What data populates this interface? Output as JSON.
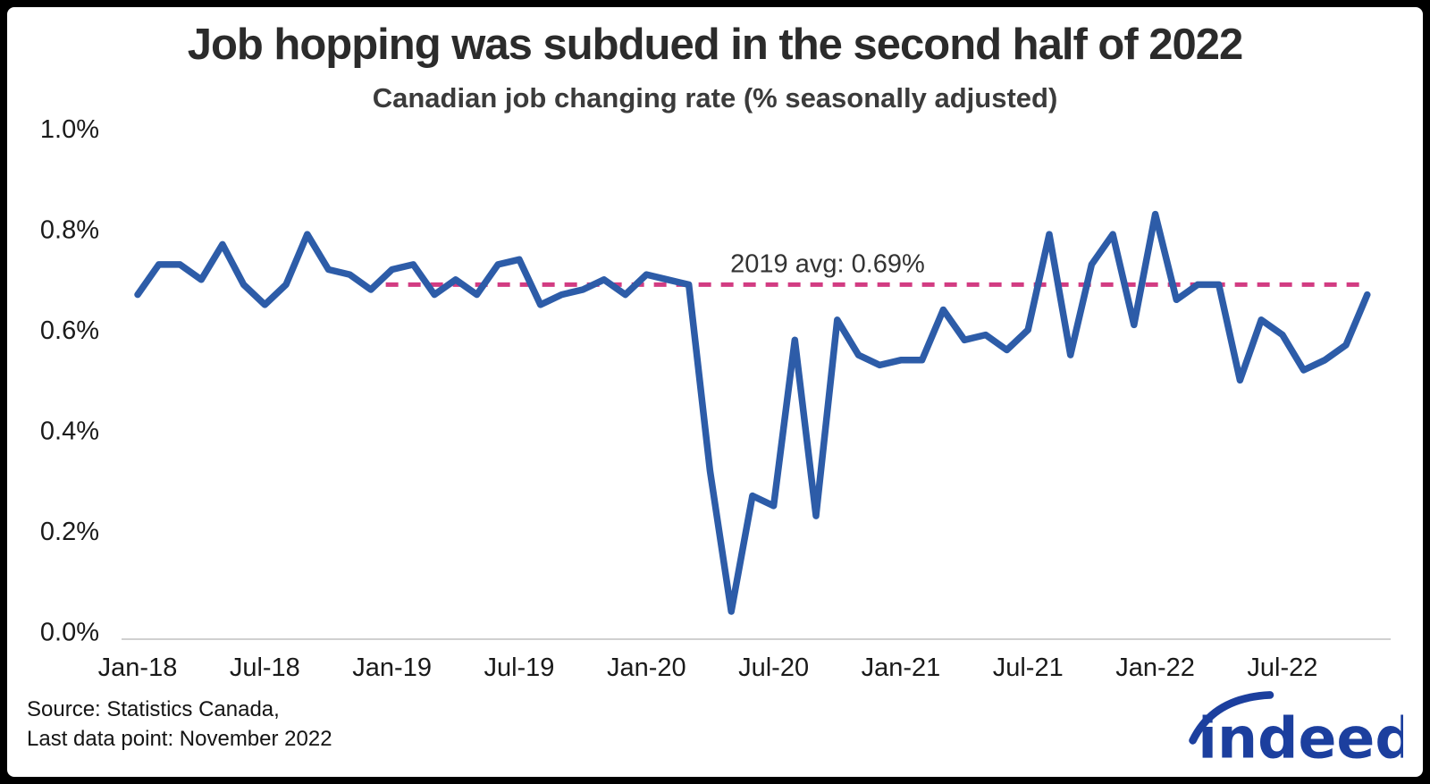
{
  "title": "Job hopping was subdued in the second half of 2022",
  "subtitle": "Canadian job changing rate (% seasonally adjusted)",
  "footer": {
    "source_line1": "Source: Statistics Canada,",
    "source_line2": "Last data point: November 2022",
    "logo_text": "indeed"
  },
  "colors": {
    "line": "#2d5ca8",
    "reference": "#d23c82",
    "axis": "#d0d0d0",
    "tick_text": "#1a1a1a",
    "logo": "#1c3f9e"
  },
  "chart_data": {
    "type": "line",
    "series_name": "Canadian job changing rate (% seasonally adjusted)",
    "x": [
      "Jan-2018",
      "Feb-2018",
      "Mar-2018",
      "Apr-2018",
      "May-2018",
      "Jun-2018",
      "Jul-2018",
      "Aug-2018",
      "Sep-2018",
      "Oct-2018",
      "Nov-2018",
      "Dec-2018",
      "Jan-2019",
      "Feb-2019",
      "Mar-2019",
      "Apr-2019",
      "May-2019",
      "Jun-2019",
      "Jul-2019",
      "Aug-2019",
      "Sep-2019",
      "Oct-2019",
      "Nov-2019",
      "Dec-2019",
      "Jan-2020",
      "Feb-2020",
      "Mar-2020",
      "Apr-2020",
      "May-2020",
      "Jun-2020",
      "Jul-2020",
      "Aug-2020",
      "Sep-2020",
      "Oct-2020",
      "Nov-2020",
      "Dec-2020",
      "Jan-2021",
      "Feb-2021",
      "Mar-2021",
      "Apr-2021",
      "May-2021",
      "Jun-2021",
      "Jul-2021",
      "Aug-2021",
      "Sep-2021",
      "Oct-2021",
      "Nov-2021",
      "Dec-2021",
      "Jan-2022",
      "Feb-2022",
      "Mar-2022",
      "Apr-2022",
      "May-2022",
      "Jun-2022",
      "Jul-2022",
      "Aug-2022",
      "Sep-2022",
      "Oct-2022",
      "Nov-2022"
    ],
    "values": [
      0.67,
      0.73,
      0.73,
      0.7,
      0.77,
      0.69,
      0.65,
      0.69,
      0.79,
      0.72,
      0.71,
      0.68,
      0.72,
      0.73,
      0.67,
      0.7,
      0.67,
      0.73,
      0.74,
      0.65,
      0.67,
      0.68,
      0.7,
      0.67,
      0.71,
      0.7,
      0.69,
      0.32,
      0.04,
      0.27,
      0.25,
      0.58,
      0.23,
      0.62,
      0.55,
      0.53,
      0.54,
      0.54,
      0.64,
      0.58,
      0.59,
      0.56,
      0.6,
      0.79,
      0.55,
      0.73,
      0.79,
      0.61,
      0.83,
      0.66,
      0.69,
      0.69,
      0.5,
      0.62,
      0.59,
      0.52,
      0.54,
      0.57,
      0.67
    ],
    "ylim": [
      0.0,
      1.0
    ],
    "yticks": {
      "values": [
        0.0,
        0.2,
        0.4,
        0.6,
        0.8,
        1.0
      ],
      "labels": [
        "0.0%",
        "0.2%",
        "0.4%",
        "0.6%",
        "0.8%",
        "1.0%"
      ]
    },
    "xticks": {
      "indices": [
        0,
        6,
        12,
        18,
        24,
        30,
        36,
        42,
        48,
        54
      ],
      "labels": [
        "Jan-18",
        "Jul-18",
        "Jan-19",
        "Jul-19",
        "Jan-20",
        "Jul-20",
        "Jan-21",
        "Jul-21",
        "Jan-22",
        "Jul-22"
      ]
    },
    "grid": false,
    "legend": "none",
    "reference_line": {
      "value": 0.69,
      "label": "2019 avg: 0.69%",
      "start_x": "Jan-2019",
      "start_index": 12,
      "style": "dashed"
    }
  }
}
